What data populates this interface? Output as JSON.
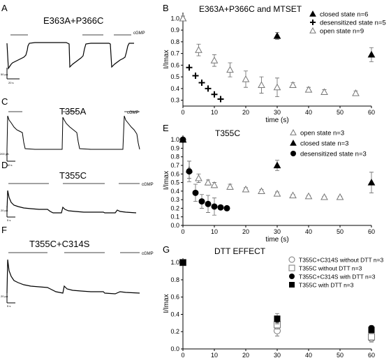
{
  "panel_labels": [
    "A",
    "B",
    "C",
    "D",
    "E",
    "F",
    "G"
  ],
  "traces": [
    {
      "letter": "A",
      "title": "E363A+P366C",
      "cgmp": "cGMP",
      "scale_y": "50 pA",
      "scale_x": "20 s"
    },
    {
      "letter": "C",
      "title": "T355A",
      "cgmp": "cGMP",
      "scale_y": "200 pA",
      "scale_x": "10 s"
    },
    {
      "letter": "D",
      "title": "T355C",
      "cgmp": "cGMP",
      "scale_y": "20 pA",
      "scale_x": "5 s"
    },
    {
      "letter": "F",
      "title": "T355C+C314S",
      "cgmp": "cGMP",
      "scale_y": "20 pA",
      "scale_x": "5 s"
    }
  ],
  "chart_data": [
    {
      "panel": "B",
      "type": "scatter",
      "title": "E363A+P366C and MTSET",
      "xlabel": "time (s)",
      "ylabel": "I/Imax",
      "xlim": [
        0,
        60
      ],
      "ylim": [
        0.25,
        1.05
      ],
      "xticks": [
        0,
        10,
        20,
        30,
        40,
        50,
        60
      ],
      "yticks": [
        0.3,
        0.4,
        0.5,
        0.6,
        0.7,
        0.8,
        0.9,
        1.0
      ],
      "legend_position": "top-right",
      "series": [
        {
          "name": "closed state n=6",
          "marker": "filled-triangle",
          "x": [
            0,
            30,
            60
          ],
          "y": [
            1.0,
            0.85,
            0.69
          ],
          "err": [
            0.02,
            0.03,
            0.06
          ]
        },
        {
          "name": "desensitized state n=5",
          "marker": "plus",
          "x": [
            2,
            4,
            6,
            8,
            10,
            12
          ],
          "y": [
            0.58,
            0.51,
            0.45,
            0.4,
            0.35,
            0.31
          ],
          "err": [
            0,
            0,
            0,
            0,
            0,
            0
          ]
        },
        {
          "name": "open state n=9",
          "marker": "open-triangle",
          "x": [
            0,
            5,
            10,
            15,
            20,
            25,
            30,
            35,
            40,
            45,
            55
          ],
          "y": [
            1.0,
            0.73,
            0.64,
            0.56,
            0.48,
            0.43,
            0.41,
            0.43,
            0.39,
            0.37,
            0.36
          ],
          "err": [
            0.02,
            0.05,
            0.05,
            0.06,
            0.07,
            0.07,
            0.08,
            0.02,
            0.02,
            0.02,
            0.02
          ]
        }
      ]
    },
    {
      "panel": "E",
      "type": "scatter",
      "title": "T355C",
      "xlabel": "time (s)",
      "ylabel": "I/Imax",
      "xlim": [
        0,
        60
      ],
      "ylim": [
        0,
        1.05
      ],
      "xticks": [
        0,
        10,
        20,
        30,
        40,
        50,
        60
      ],
      "yticks": [
        0.0,
        0.1,
        0.2,
        0.3,
        0.4,
        0.5,
        0.6,
        0.7,
        0.8,
        0.9,
        1.0
      ],
      "legend_position": "top-right",
      "series": [
        {
          "name": "open state n=3",
          "marker": "open-triangle",
          "x": [
            0,
            2,
            5,
            8,
            10,
            15,
            20,
            25,
            30,
            35,
            40,
            45,
            50
          ],
          "y": [
            1.0,
            0.65,
            0.55,
            0.5,
            0.47,
            0.45,
            0.42,
            0.4,
            0.37,
            0.35,
            0.34,
            0.33,
            0.33
          ],
          "err": [
            0,
            0.1,
            0.05,
            0.03,
            0.03,
            0.03,
            0.02,
            0.02,
            0.02,
            0.01,
            0.01,
            0.01,
            0.01
          ]
        },
        {
          "name": "closed state n=3",
          "marker": "filled-triangle",
          "x": [
            0,
            30,
            60
          ],
          "y": [
            1.0,
            0.7,
            0.5
          ],
          "err": [
            0.02,
            0.06,
            0.12
          ]
        },
        {
          "name": "desensitized state n=3",
          "marker": "filled-circle",
          "x": [
            0,
            2,
            4,
            6,
            8,
            10,
            12,
            14
          ],
          "y": [
            1.0,
            0.63,
            0.38,
            0.28,
            0.25,
            0.22,
            0.21,
            0.2
          ],
          "err": [
            0,
            0.12,
            0.1,
            0.08,
            0.1,
            0.1,
            0.02,
            0.01
          ]
        }
      ]
    },
    {
      "panel": "G",
      "type": "scatter",
      "title": "DTT EFFECT",
      "xlabel": "time (s)",
      "ylabel": "I/Imax",
      "xlim": [
        0,
        60
      ],
      "ylim": [
        0,
        1.05
      ],
      "xticks": [
        0,
        10,
        20,
        30,
        40,
        50,
        60
      ],
      "yticks": [
        0.0,
        0.2,
        0.4,
        0.6,
        0.8,
        1.0
      ],
      "legend_position": "top-right",
      "series": [
        {
          "name": "T355C+C314S without DTT n=3",
          "marker": "open-circle",
          "x": [
            0,
            30,
            60
          ],
          "y": [
            1.0,
            0.21,
            0.12
          ],
          "err": [
            0.02,
            0.06,
            0.04
          ]
        },
        {
          "name": "T355C without DTT n=3",
          "marker": "open-square",
          "x": [
            0,
            30,
            60
          ],
          "y": [
            1.0,
            0.28,
            0.14
          ],
          "err": [
            0.02,
            0.05,
            0.04
          ]
        },
        {
          "name": "T355C+C314S with DTT n=3",
          "marker": "filled-circle",
          "x": [
            0,
            30,
            60
          ],
          "y": [
            1.0,
            0.34,
            0.24
          ],
          "err": [
            0.02,
            0.04,
            0.03
          ]
        },
        {
          "name": "T355C with DTT n=3",
          "marker": "filled-square",
          "x": [
            0,
            30,
            60
          ],
          "y": [
            1.0,
            0.35,
            0.22
          ],
          "err": [
            0.02,
            0.06,
            0.03
          ]
        }
      ]
    }
  ]
}
